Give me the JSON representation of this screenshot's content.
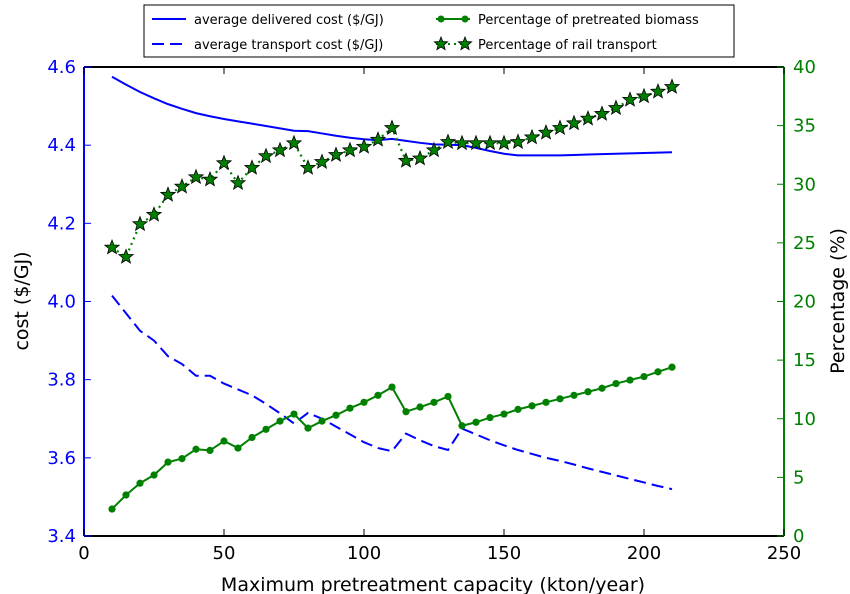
{
  "chart_data": {
    "type": "line",
    "x": [
      10,
      15,
      20,
      25,
      30,
      35,
      40,
      45,
      50,
      55,
      60,
      65,
      70,
      75,
      80,
      85,
      90,
      95,
      100,
      105,
      110,
      115,
      120,
      125,
      130,
      135,
      140,
      145,
      150,
      155,
      160,
      165,
      170,
      175,
      180,
      185,
      190,
      195,
      200,
      205,
      210
    ],
    "xlabel": "Maximum pretreatment capacity (kton/year)",
    "ylabel_left": "cost ($/GJ)",
    "ylabel_right": "Percentage (%)",
    "xlim": [
      0,
      250
    ],
    "ylim_left": [
      3.4,
      4.6
    ],
    "ylim_right": [
      0,
      40
    ],
    "xticks": [
      "0",
      "50",
      "100",
      "150",
      "200",
      "250"
    ],
    "yticks_left": [
      "3.4",
      "3.6",
      "3.8",
      "4.0",
      "4.2",
      "4.4",
      "4.6"
    ],
    "yticks_right": [
      "0",
      "5",
      "10",
      "15",
      "20",
      "25",
      "30",
      "35",
      "40"
    ],
    "legend_position": "top-center, above plot, two columns",
    "series": [
      {
        "name": "average delivered cost ($/GJ)",
        "axis": "left",
        "style": "solid",
        "color": "#0000ff",
        "values": [
          4.575,
          4.555,
          4.536,
          4.52,
          4.505,
          4.493,
          4.482,
          4.474,
          4.467,
          4.461,
          4.455,
          4.449,
          4.443,
          4.437,
          4.436,
          4.43,
          4.424,
          4.419,
          4.415,
          4.413,
          4.416,
          4.411,
          4.406,
          4.402,
          4.401,
          4.4,
          4.393,
          4.385,
          4.378,
          4.374,
          4.374,
          4.374,
          4.374,
          4.375,
          4.376,
          4.377,
          4.378,
          4.379,
          4.38,
          4.381,
          4.382
        ]
      },
      {
        "name": "average transport cost ($/GJ)",
        "axis": "left",
        "style": "dashed",
        "color": "#0000ff",
        "values": [
          4.015,
          3.97,
          3.925,
          3.9,
          3.86,
          3.84,
          3.81,
          3.81,
          3.79,
          3.775,
          3.76,
          3.738,
          3.714,
          3.688,
          3.715,
          3.7,
          3.68,
          3.66,
          3.64,
          3.625,
          3.617,
          3.662,
          3.645,
          3.63,
          3.62,
          3.675,
          3.66,
          3.645,
          3.632,
          3.62,
          3.61,
          3.6,
          3.592,
          3.583,
          3.573,
          3.564,
          3.555,
          3.546,
          3.537,
          3.528,
          3.52
        ]
      },
      {
        "name": "Percentage of pretreated biomass",
        "axis": "right",
        "style": "solid-dot",
        "color": "#008000",
        "values": [
          2.3,
          3.5,
          4.5,
          5.2,
          6.3,
          6.6,
          7.4,
          7.3,
          8.1,
          7.5,
          8.4,
          9.1,
          9.8,
          10.4,
          9.2,
          9.8,
          10.3,
          10.9,
          11.4,
          12.0,
          12.7,
          10.6,
          11.0,
          11.4,
          11.9,
          9.4,
          9.7,
          10.1,
          10.4,
          10.8,
          11.1,
          11.4,
          11.7,
          12.0,
          12.3,
          12.6,
          13.0,
          13.3,
          13.6,
          14.0,
          14.4
        ]
      },
      {
        "name": "Percentage of rail transport",
        "axis": "right",
        "style": "dotted-star",
        "color": "#008000",
        "values": [
          24.6,
          23.8,
          26.6,
          27.4,
          29.1,
          29.8,
          30.6,
          30.4,
          31.8,
          30.1,
          31.4,
          32.4,
          32.9,
          33.5,
          31.4,
          31.9,
          32.5,
          32.9,
          33.2,
          33.8,
          34.8,
          32.0,
          32.2,
          32.9,
          33.6,
          33.5,
          33.5,
          33.5,
          33.5,
          33.6,
          34.0,
          34.4,
          34.8,
          35.2,
          35.6,
          36.0,
          36.5,
          37.2,
          37.5,
          37.9,
          38.3
        ]
      }
    ]
  }
}
